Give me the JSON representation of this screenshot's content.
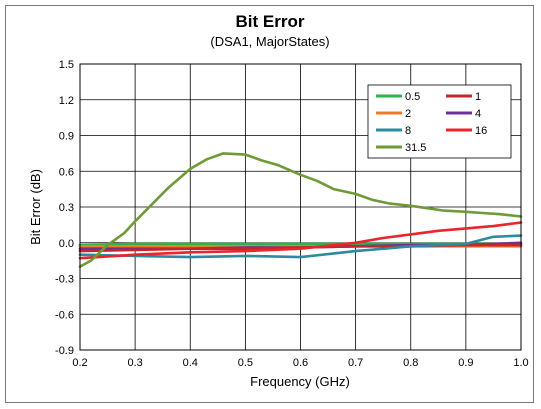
{
  "chart_data": {
    "type": "line",
    "title": "Bit Error",
    "subtitle": "(DSA1, MajorStates)",
    "xlabel": "Frequency (GHz)",
    "ylabel": "Bit Error (dB)",
    "xlim": [
      0.2,
      1.0
    ],
    "ylim": [
      -0.9,
      1.5
    ],
    "x_ticks": [
      "0.2",
      "0.3",
      "0.4",
      "0.5",
      "0.6",
      "0.7",
      "0.8",
      "0.9",
      "1.0"
    ],
    "y_ticks": [
      "1.5",
      "1.2",
      "0.9",
      "0.6",
      "0.3",
      "0.0",
      "-0.3",
      "-0.6",
      "-0.9"
    ],
    "grid": true,
    "legend_position": "top-right",
    "series": [
      {
        "name": "0.5",
        "color": "#2db34a",
        "x": [
          0.2,
          0.3,
          0.4,
          0.5,
          0.6,
          0.7,
          0.8,
          0.9,
          1.0
        ],
        "y": [
          -0.02,
          -0.01,
          -0.01,
          -0.01,
          -0.01,
          -0.01,
          -0.01,
          -0.01,
          -0.01
        ]
      },
      {
        "name": "1",
        "color": "#c0282d",
        "x": [
          0.2,
          0.3,
          0.4,
          0.5,
          0.6,
          0.7,
          0.8,
          0.9,
          1.0
        ],
        "y": [
          -0.07,
          -0.06,
          -0.05,
          -0.05,
          -0.04,
          -0.03,
          -0.03,
          -0.02,
          -0.02
        ]
      },
      {
        "name": "2",
        "color": "#f07c2a",
        "x": [
          0.2,
          0.3,
          0.4,
          0.5,
          0.6,
          0.7,
          0.8,
          0.9,
          1.0
        ],
        "y": [
          -0.03,
          -0.03,
          -0.03,
          -0.03,
          -0.03,
          -0.03,
          -0.03,
          -0.03,
          -0.03
        ]
      },
      {
        "name": "4",
        "color": "#6e3096",
        "x": [
          0.2,
          0.3,
          0.4,
          0.5,
          0.6,
          0.7,
          0.8,
          0.9,
          1.0
        ],
        "y": [
          -0.05,
          -0.05,
          -0.05,
          -0.04,
          -0.04,
          -0.03,
          -0.02,
          -0.02,
          0.0
        ]
      },
      {
        "name": "8",
        "color": "#2e8aa0",
        "x": [
          0.2,
          0.3,
          0.4,
          0.5,
          0.6,
          0.7,
          0.8,
          0.9,
          0.95,
          1.0
        ],
        "y": [
          -0.1,
          -0.11,
          -0.12,
          -0.11,
          -0.12,
          -0.07,
          -0.03,
          -0.01,
          0.05,
          0.06
        ]
      },
      {
        "name": "16",
        "color": "#e8262c",
        "x": [
          0.2,
          0.3,
          0.4,
          0.5,
          0.6,
          0.7,
          0.75,
          0.8,
          0.85,
          0.9,
          0.95,
          1.0
        ],
        "y": [
          -0.13,
          -0.1,
          -0.08,
          -0.07,
          -0.05,
          0.0,
          0.04,
          0.07,
          0.1,
          0.12,
          0.14,
          0.17
        ]
      },
      {
        "name": "31.5",
        "color": "#6e9b35",
        "x": [
          0.2,
          0.22,
          0.25,
          0.28,
          0.3,
          0.33,
          0.36,
          0.4,
          0.43,
          0.46,
          0.5,
          0.53,
          0.56,
          0.6,
          0.63,
          0.66,
          0.7,
          0.73,
          0.76,
          0.8,
          0.83,
          0.86,
          0.9,
          0.93,
          0.96,
          1.0
        ],
        "y": [
          -0.2,
          -0.15,
          -0.02,
          0.08,
          0.18,
          0.32,
          0.46,
          0.62,
          0.7,
          0.75,
          0.74,
          0.69,
          0.65,
          0.57,
          0.52,
          0.45,
          0.41,
          0.36,
          0.33,
          0.31,
          0.29,
          0.27,
          0.26,
          0.25,
          0.24,
          0.22
        ]
      }
    ]
  }
}
